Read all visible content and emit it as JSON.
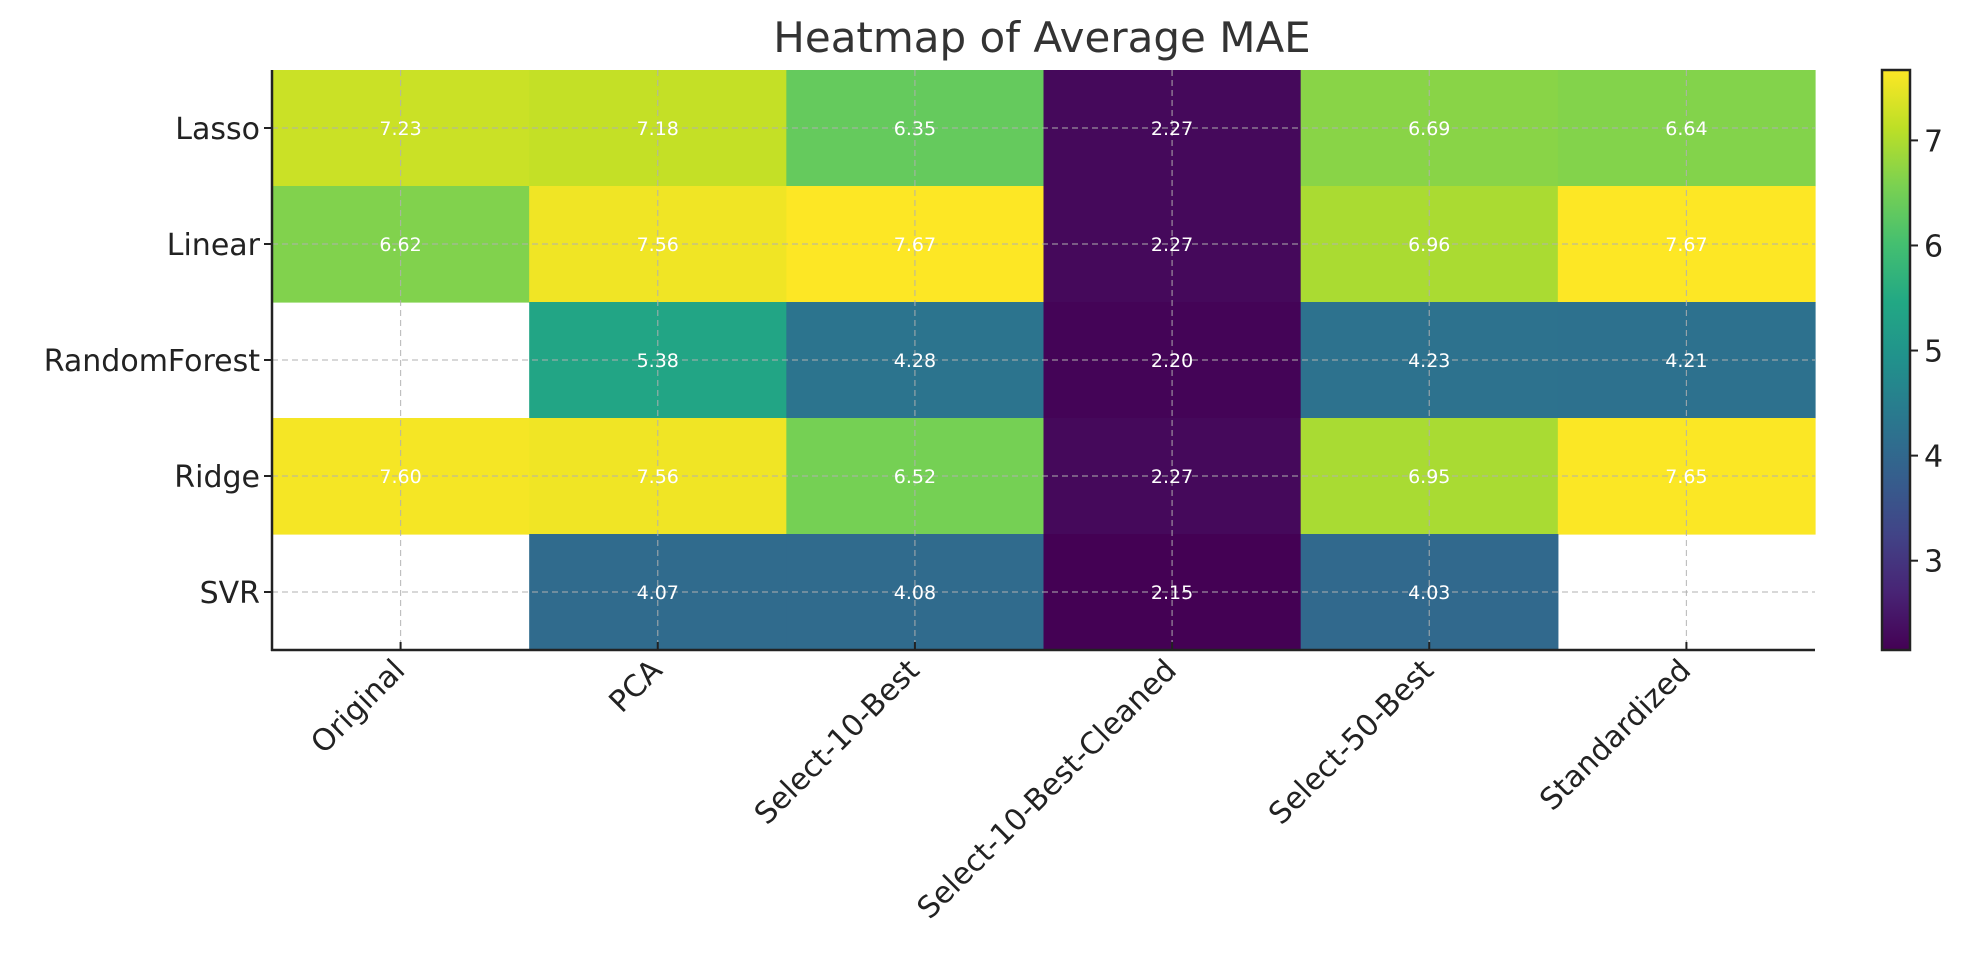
{
  "chart_data": {
    "type": "heatmap",
    "title": "Heatmap of Average MAE",
    "xlabel": "",
    "ylabel": "",
    "x_categories": [
      "Original",
      "PCA",
      "Select-10-Best",
      "Select-10-Best-Cleaned",
      "Select-50-Best",
      "Standardized"
    ],
    "y_categories": [
      "Lasso",
      "Linear",
      "RandomForest",
      "Ridge",
      "SVR"
    ],
    "values": [
      [
        7.23,
        7.18,
        6.35,
        2.27,
        6.69,
        6.64
      ],
      [
        6.62,
        7.56,
        7.67,
        2.27,
        6.96,
        7.67
      ],
      [
        null,
        5.38,
        4.28,
        2.2,
        4.23,
        4.21
      ],
      [
        7.6,
        7.56,
        6.52,
        2.27,
        6.95,
        7.65
      ],
      [
        null,
        4.07,
        4.08,
        2.15,
        4.03,
        null
      ]
    ],
    "value_labels": [
      [
        "7.23",
        "7.18",
        "6.35",
        "2.27",
        "6.69",
        "6.64"
      ],
      [
        "6.62",
        "7.56",
        "7.67",
        "2.27",
        "6.96",
        "7.67"
      ],
      [
        "",
        "5.38",
        "4.28",
        "2.20",
        "4.23",
        "4.21"
      ],
      [
        "7.60",
        "7.56",
        "6.52",
        "2.27",
        "6.95",
        "7.65"
      ],
      [
        "",
        "4.07",
        "4.08",
        "2.15",
        "4.03",
        ""
      ]
    ],
    "colormap": "viridis",
    "color_range": [
      2.15,
      7.67
    ],
    "colorbar_ticks": [
      "3",
      "4",
      "5",
      "6",
      "7"
    ],
    "grid": true,
    "grid_style": "dashed",
    "colorbar_position": "right"
  }
}
